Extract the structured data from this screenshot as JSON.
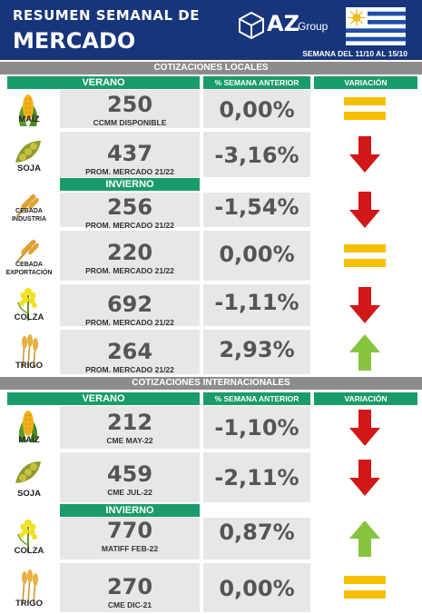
{
  "header": {
    "title_line1": "RESUMEN SEMANAL DE",
    "title_line2": "MERCADO",
    "logo_main": "AZ",
    "logo_sub": "Group",
    "week": "SEMANA DEL 11/10 AL 15/10"
  },
  "colors": {
    "header": "#17357a",
    "green": "#1a9c6a",
    "grey_bar": "#8c8c8c",
    "down": "#d01818",
    "up": "#86c440",
    "equal": "#f5c000"
  },
  "local": {
    "title": "COTIZACIONES LOCALES",
    "col_verano": "VERANO",
    "col_pct": "% SEMANA ANTERIOR",
    "col_var": "VARIACIÓN",
    "invierno": "INVIERNO",
    "rows": [
      {
        "crop": "MAÍZ",
        "price": "250",
        "ref": "CCMM DISPONIBLE",
        "pct": "0,00%",
        "variation": "equal",
        "icon": "corn-icon"
      },
      {
        "crop": "SOJA",
        "price": "437",
        "ref": "PROM. MERCADO 21/22",
        "pct": "-3,16%",
        "variation": "down",
        "icon": "soy-icon"
      },
      {
        "crop": "CEBADA INDUSTRIA",
        "crop_l1": "CEBADA",
        "crop_l2": "INDUSTRIA",
        "price": "256",
        "ref": "PROM. MERCADO 21/22",
        "pct": "-1,54%",
        "variation": "down",
        "icon": "barley-icon"
      },
      {
        "crop": "CEBADA EXPORTACIÓN",
        "crop_l1": "CEBADA",
        "crop_l2": "EXPORTACIÓN",
        "price": "220",
        "ref": "PROM. MERCADO 21/22",
        "pct": "0,00%",
        "variation": "equal",
        "icon": "barley-icon"
      },
      {
        "crop": "COLZA",
        "price": "692",
        "ref": "PROM. MERCADO 21/22",
        "pct": "-1,11%",
        "variation": "down",
        "icon": "rapeseed-icon"
      },
      {
        "crop": "TRIGO",
        "price": "264",
        "ref": "PROM. MERCADO 21/22",
        "pct": "2,93%",
        "variation": "up",
        "icon": "wheat-icon"
      }
    ]
  },
  "intl": {
    "title": "COTIZACIONES INTERNACIONALES",
    "col_verano": "VERANO",
    "col_pct": "% SEMANA ANTERIOR",
    "col_var": "VARIACIÓN",
    "invierno": "INVIERNO",
    "rows": [
      {
        "crop": "MAÍZ",
        "price": "212",
        "ref": "CME MAY-22",
        "pct": "-1,10%",
        "variation": "down",
        "icon": "corn-icon"
      },
      {
        "crop": "SOJA",
        "price": "459",
        "ref": "CME JUL-22",
        "pct": "-2,11%",
        "variation": "down",
        "icon": "soy-icon"
      },
      {
        "crop": "COLZA",
        "price": "770",
        "ref": "MATIFF FEB-22",
        "pct": "0,87%",
        "variation": "up",
        "icon": "rapeseed-icon"
      },
      {
        "crop": "TRIGO",
        "price": "270",
        "ref": "CME DIC-21",
        "pct": "0,00%",
        "variation": "equal",
        "icon": "wheat-icon"
      }
    ]
  }
}
